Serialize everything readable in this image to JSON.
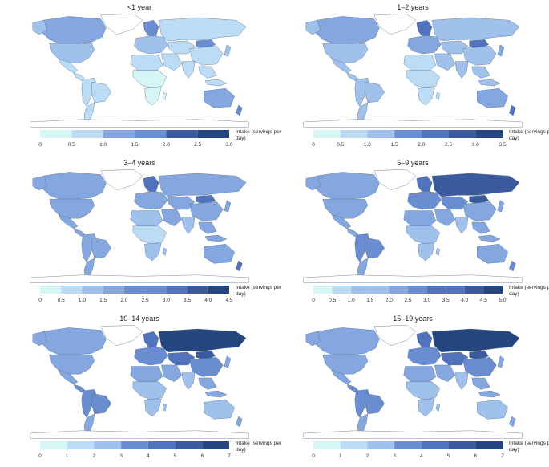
{
  "palette": [
    "#d6f6f6",
    "#bcdcf5",
    "#9fc1ec",
    "#85a7e0",
    "#6a8dd1",
    "#5173bd",
    "#3a5a9e",
    "#24467e"
  ],
  "legend_title": "Intake (servings per day)",
  "panels": [
    {
      "title": "<1 year",
      "ticks": [
        "0",
        "0.5",
        "1.0",
        "1.5",
        "2.0",
        "2.5",
        "3.0"
      ],
      "levels": {
        "canada": 3,
        "usa": 2,
        "mexico": 1,
        "central_america": 1,
        "south_america": 1,
        "brazil": 1,
        "argentina": 1,
        "europe": 2,
        "scandinavia": 4,
        "russia": 1,
        "central_asia": 1,
        "mongolia": 4,
        "china": 1,
        "middle_east": 1,
        "india": 1,
        "southeast_asia": 1,
        "north_africa": 1,
        "subsaharan_africa": 0,
        "southern_africa": 0,
        "australia": 3,
        "new_zealand": 4,
        "japan": 2
      }
    },
    {
      "title": "1–2 years",
      "ticks": [
        "0",
        "0.5",
        "1.0",
        "1.5",
        "2.0",
        "2.5",
        "3.0",
        "3.5"
      ],
      "levels": {
        "canada": 3,
        "usa": 2,
        "mexico": 2,
        "central_america": 2,
        "south_america": 2,
        "brazil": 2,
        "argentina": 2,
        "europe": 3,
        "scandinavia": 5,
        "russia": 2,
        "central_asia": 2,
        "mongolia": 5,
        "china": 2,
        "middle_east": 2,
        "india": 2,
        "southeast_asia": 2,
        "north_africa": 1,
        "subsaharan_africa": 1,
        "southern_africa": 1,
        "australia": 3,
        "new_zealand": 5,
        "japan": 3
      }
    },
    {
      "title": "3–4 years",
      "ticks": [
        "0",
        "0.5",
        "1.0",
        "1.5",
        "2.0",
        "2.5",
        "3.0",
        "3.5",
        "4.0",
        "4.5"
      ],
      "levels": {
        "canada": 3,
        "usa": 3,
        "mexico": 3,
        "central_america": 3,
        "south_america": 3,
        "brazil": 3,
        "argentina": 3,
        "europe": 3,
        "scandinavia": 5,
        "russia": 3,
        "central_asia": 3,
        "mongolia": 5,
        "china": 3,
        "middle_east": 3,
        "india": 2,
        "southeast_asia": 3,
        "north_africa": 2,
        "subsaharan_africa": 1,
        "southern_africa": 2,
        "australia": 3,
        "new_zealand": 5,
        "japan": 3
      }
    },
    {
      "title": "5–9 years",
      "ticks": [
        "0",
        "0.5",
        "1.0",
        "1.5",
        "2.0",
        "2.5",
        "3.0",
        "3.5",
        "4.0",
        "4.5",
        "5.0"
      ],
      "levels": {
        "canada": 3,
        "usa": 3,
        "mexico": 3,
        "central_america": 3,
        "south_america": 4,
        "brazil": 4,
        "argentina": 3,
        "europe": 4,
        "scandinavia": 5,
        "russia": 6,
        "central_asia": 4,
        "mongolia": 6,
        "china": 3,
        "middle_east": 3,
        "india": 2,
        "southeast_asia": 3,
        "north_africa": 3,
        "subsaharan_africa": 2,
        "southern_africa": 2,
        "australia": 3,
        "new_zealand": 4,
        "japan": 3
      }
    },
    {
      "title": "10–14 years",
      "ticks": [
        "0",
        "1",
        "2",
        "3",
        "4",
        "5",
        "6",
        "7"
      ],
      "levels": {
        "canada": 3,
        "usa": 3,
        "mexico": 3,
        "central_america": 4,
        "south_america": 4,
        "brazil": 4,
        "argentina": 3,
        "europe": 4,
        "scandinavia": 5,
        "russia": 7,
        "central_asia": 5,
        "mongolia": 6,
        "china": 4,
        "middle_east": 3,
        "india": 2,
        "southeast_asia": 3,
        "north_africa": 3,
        "subsaharan_africa": 2,
        "southern_africa": 2,
        "australia": 2,
        "new_zealand": 3,
        "japan": 3
      }
    },
    {
      "title": "15–19 years",
      "ticks": [
        "0",
        "1",
        "2",
        "3",
        "4",
        "5",
        "6",
        "7"
      ],
      "levels": {
        "canada": 3,
        "usa": 3,
        "mexico": 3,
        "central_america": 4,
        "south_america": 4,
        "brazil": 4,
        "argentina": 3,
        "europe": 4,
        "scandinavia": 5,
        "russia": 7,
        "central_asia": 5,
        "mongolia": 6,
        "china": 4,
        "middle_east": 3,
        "india": 2,
        "southeast_asia": 3,
        "north_africa": 3,
        "subsaharan_africa": 2,
        "southern_africa": 2,
        "australia": 2,
        "new_zealand": 3,
        "japan": 3
      }
    }
  ]
}
